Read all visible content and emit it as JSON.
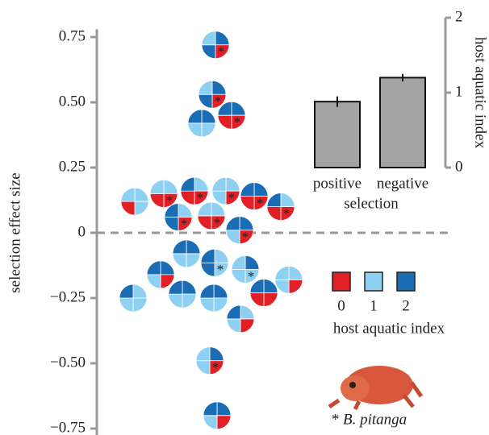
{
  "chart_data": [
    {
      "type": "glyph-scatter",
      "ylabel": "selection effect size",
      "ylim": [
        -0.78,
        0.78
      ],
      "yticks": [
        {
          "value": 0.75,
          "label": "0.75"
        },
        {
          "value": 0.5,
          "label": "0.50"
        },
        0.25,
        0,
        {
          "value": -0.25,
          "label": "−0.25"
        },
        {
          "value": -0.5,
          "label": "−0.50"
        },
        {
          "value": -0.75,
          "label": "−0.75"
        }
      ],
      "reference_line": 0,
      "colors": [
        "#e31f26",
        "#8dd0f2",
        "#1a6db4"
      ],
      "marker": "*",
      "legend": {
        "title": "host aquatic index",
        "labels": [
          "0",
          "1",
          "2"
        ]
      },
      "caption_species": "B. pitanga",
      "points": [
        {
          "value": 0.72,
          "quarters": [
            2,
            0,
            2,
            1
          ],
          "pitanga": true
        },
        {
          "value": 0.53,
          "quarters": [
            2,
            0,
            2,
            1
          ],
          "pitanga": true
        },
        {
          "value": 0.45,
          "quarters": [
            2,
            0,
            0,
            2
          ],
          "pitanga": true
        },
        {
          "value": 0.42,
          "quarters": [
            2,
            1,
            1,
            2
          ],
          "pitanga": false
        },
        {
          "value": 0.12,
          "quarters": [
            1,
            1,
            0,
            1
          ],
          "pitanga": false
        },
        {
          "value": 0.15,
          "quarters": [
            1,
            0,
            0,
            1
          ],
          "pitanga": true
        },
        {
          "value": 0.16,
          "quarters": [
            1,
            0,
            0,
            2
          ],
          "pitanga": true
        },
        {
          "value": 0.16,
          "quarters": [
            1,
            0,
            1,
            1
          ],
          "pitanga": true
        },
        {
          "value": 0.14,
          "quarters": [
            2,
            0,
            0,
            2
          ],
          "pitanga": true
        },
        {
          "value": 0.1,
          "quarters": [
            1,
            0,
            0,
            2
          ],
          "pitanga": true
        },
        {
          "value": 0.06,
          "quarters": [
            1,
            0,
            2,
            2
          ],
          "pitanga": true
        },
        {
          "value": 0.065,
          "quarters": [
            1,
            0,
            0,
            1
          ],
          "pitanga": true
        },
        {
          "value": 0.01,
          "quarters": [
            2,
            0,
            1,
            2
          ],
          "pitanga": true
        },
        {
          "value": -0.08,
          "quarters": [
            2,
            1,
            1,
            2
          ],
          "pitanga": false
        },
        {
          "value": -0.16,
          "quarters": [
            2,
            0,
            1,
            2
          ],
          "pitanga": false
        },
        {
          "value": -0.115,
          "quarters": [
            1,
            1,
            2,
            2
          ],
          "pitanga": true
        },
        {
          "value": -0.14,
          "quarters": [
            2,
            1,
            1,
            1
          ],
          "pitanga": true
        },
        {
          "value": -0.18,
          "quarters": [
            1,
            0,
            1,
            1
          ],
          "pitanga": false
        },
        {
          "value": -0.25,
          "quarters": [
            1,
            1,
            1,
            2
          ],
          "pitanga": false
        },
        {
          "value": -0.235,
          "quarters": [
            2,
            1,
            1,
            2
          ],
          "pitanga": false
        },
        {
          "value": -0.25,
          "quarters": [
            2,
            1,
            1,
            2
          ],
          "pitanga": false
        },
        {
          "value": -0.23,
          "quarters": [
            2,
            0,
            0,
            2
          ],
          "pitanga": false
        },
        {
          "value": -0.33,
          "quarters": [
            1,
            0,
            1,
            2
          ],
          "pitanga": false
        },
        {
          "value": -0.49,
          "quarters": [
            2,
            0,
            1,
            1
          ],
          "pitanga": true
        },
        {
          "value": -0.7,
          "quarters": [
            2,
            0,
            1,
            2
          ],
          "pitanga": false
        }
      ]
    },
    {
      "type": "bar",
      "ylabel": "host aquatic index",
      "xlabel": "selection",
      "categories": [
        "positive",
        "negative"
      ],
      "values": [
        0.88,
        1.2
      ],
      "errors": [
        0.07,
        0.05
      ],
      "color": "#a3a3a3",
      "ylim": [
        0,
        2
      ],
      "yticks": [
        0,
        1,
        2
      ]
    }
  ]
}
